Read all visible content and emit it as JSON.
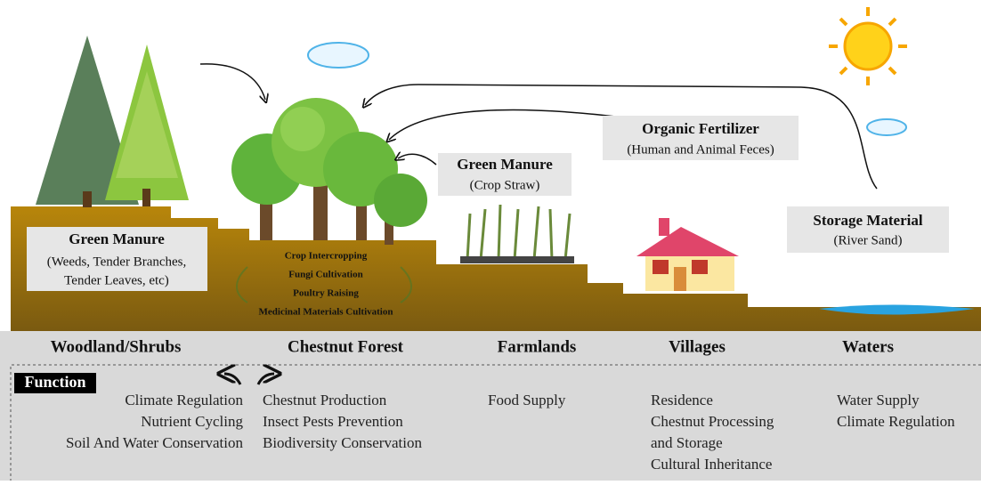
{
  "callouts": {
    "woodland": {
      "title": "Green Manure",
      "lines": [
        "(Weeds, Tender Branches,",
        "Tender Leaves, etc)"
      ]
    },
    "farmland": {
      "title": "Green Manure",
      "lines": [
        "(Crop Straw)"
      ]
    },
    "village": {
      "title": "Organic Fertilizer",
      "lines": [
        "(Human and Animal Feces)"
      ]
    },
    "waters": {
      "title": "Storage Material",
      "lines": [
        "(River Sand)"
      ]
    }
  },
  "forest_activities": [
    "Crop Intercropping",
    "Fungi Cultivation",
    "Poultry Raising",
    "Medicinal Materials Cultivation"
  ],
  "function_label": "Function",
  "zones": [
    {
      "name": "Woodland/Shrubs",
      "functions": [
        "Climate Regulation",
        "Nutrient Cycling",
        "Soil And Water Conservation"
      ]
    },
    {
      "name": "Chestnut Forest",
      "functions": [
        "Chestnut Production",
        "Insect Pests Prevention",
        "Biodiversity Conservation"
      ]
    },
    {
      "name": "Farmlands",
      "functions": [
        "Food Supply"
      ]
    },
    {
      "name": "Villages",
      "functions": [
        "Residence",
        "Chestnut Processing",
        "and Storage",
        "Cultural Inheritance"
      ]
    },
    {
      "name": "Waters",
      "functions": [
        "Water Supply",
        "Climate Regulation"
      ]
    }
  ]
}
